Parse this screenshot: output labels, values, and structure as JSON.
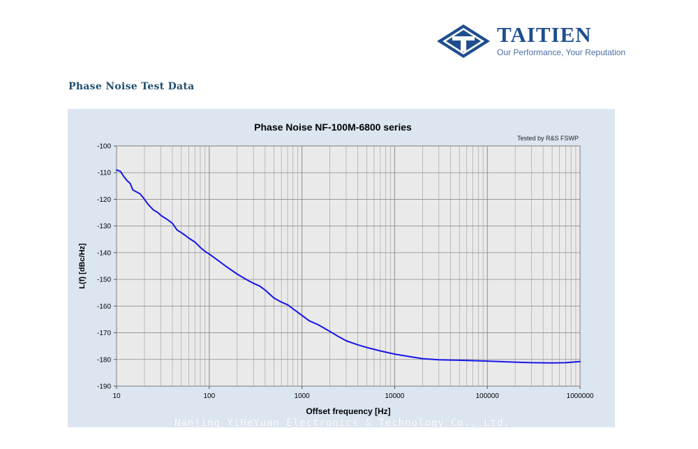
{
  "brand": {
    "name": "TAITIEN",
    "tagline": "Our Performance, Your Reputation",
    "color": "#1f4e8f"
  },
  "section_title": "Phase Noise Test Data",
  "watermark": "Nanjing YiHeYuan Electronics & Technology Co., Ltd.",
  "chart_data": {
    "type": "line",
    "title": "Phase Noise NF-100M-6800 series",
    "annotation": "Tested by R&S FSWP",
    "xlabel": "Offset frequency [Hz]",
    "ylabel": "L(f) [dBc/Hz]",
    "x_scale": "log",
    "xlim": [
      10,
      1000000
    ],
    "ylim": [
      -190,
      -100
    ],
    "x_ticks": [
      10,
      100,
      1000,
      10000,
      100000,
      1000000
    ],
    "x_tick_labels": [
      "10",
      "100",
      "1000",
      "10000",
      "100000",
      "1000000"
    ],
    "y_ticks": [
      -100,
      -110,
      -120,
      -130,
      -140,
      -150,
      -160,
      -170,
      -180,
      -190
    ],
    "y_tick_labels": [
      "-100",
      "-110",
      "-120",
      "-130",
      "-140",
      "-150",
      "-160",
      "-170",
      "-180",
      "-190"
    ],
    "grid": true,
    "line_color": "#1515e6",
    "plot_background": "#eaeaea",
    "series": [
      {
        "x": [
          10,
          11,
          12,
          13,
          14,
          15,
          16,
          18,
          20,
          22,
          25,
          28,
          30,
          35,
          40,
          45,
          50,
          55,
          60,
          70,
          80,
          90,
          100,
          120,
          150,
          200,
          250,
          300,
          350,
          400,
          500,
          600,
          700,
          800,
          1000,
          1200,
          1500,
          2000,
          2500,
          3000,
          4000,
          5000,
          7000,
          10000,
          15000,
          20000,
          30000,
          50000,
          100000,
          200000,
          300000,
          500000,
          700000,
          1000000
        ],
        "y": [
          -109,
          -109.5,
          -111.5,
          -113,
          -114,
          -116.5,
          -117,
          -118,
          -120,
          -122,
          -124,
          -125,
          -126,
          -127.5,
          -129,
          -131.5,
          -132.5,
          -133.5,
          -134.5,
          -136,
          -138,
          -139.5,
          -140.5,
          -142.5,
          -145,
          -148,
          -150,
          -151.5,
          -152.5,
          -154,
          -157,
          -158.5,
          -159.5,
          -161,
          -163.5,
          -165.5,
          -167,
          -169.5,
          -171.5,
          -173,
          -174.5,
          -175.5,
          -176.8,
          -178,
          -179,
          -179.7,
          -180.1,
          -180.3,
          -180.6,
          -181,
          -181.2,
          -181.3,
          -181.2,
          -180.8
        ]
      }
    ]
  }
}
